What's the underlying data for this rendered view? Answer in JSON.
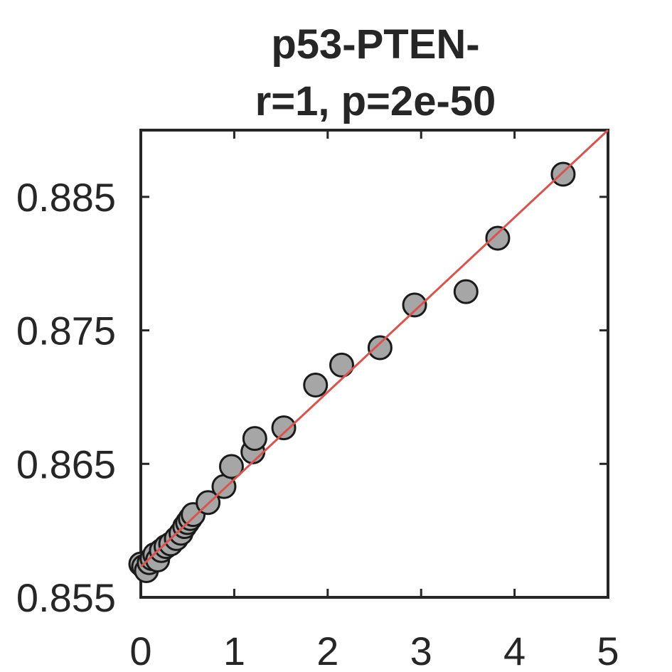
{
  "chart_data": {
    "type": "scatter",
    "title_lines": [
      "p53-PTEN-",
      "r=1, p=2e-50"
    ],
    "xlabel": "",
    "ylabel": "",
    "xlim": [
      0,
      5
    ],
    "ylim": [
      0.855,
      0.89
    ],
    "xticks": [
      0,
      1,
      2,
      3,
      4,
      5
    ],
    "xtick_labels": [
      "0",
      "1",
      "2",
      "3",
      "4",
      "5"
    ],
    "yticks": [
      0.855,
      0.865,
      0.875,
      0.885
    ],
    "ytick_labels": [
      "0.855",
      "0.865",
      "0.875",
      "0.885"
    ],
    "grid": false,
    "series": [
      {
        "marker": "circle",
        "marker_fill": "#a6a6a6",
        "marker_edge": "#1a1a1a",
        "points": [
          {
            "x": 0.0,
            "y": 0.8575
          },
          {
            "x": 0.03,
            "y": 0.8573
          },
          {
            "x": 0.06,
            "y": 0.857
          },
          {
            "x": 0.09,
            "y": 0.8576
          },
          {
            "x": 0.12,
            "y": 0.8579
          },
          {
            "x": 0.15,
            "y": 0.8582
          },
          {
            "x": 0.18,
            "y": 0.8578
          },
          {
            "x": 0.22,
            "y": 0.8585
          },
          {
            "x": 0.27,
            "y": 0.8588
          },
          {
            "x": 0.32,
            "y": 0.859
          },
          {
            "x": 0.38,
            "y": 0.8594
          },
          {
            "x": 0.43,
            "y": 0.8598
          },
          {
            "x": 0.47,
            "y": 0.8603
          },
          {
            "x": 0.5,
            "y": 0.8606
          },
          {
            "x": 0.53,
            "y": 0.8609
          },
          {
            "x": 0.56,
            "y": 0.8612
          },
          {
            "x": 0.72,
            "y": 0.8621
          },
          {
            "x": 0.89,
            "y": 0.8633
          },
          {
            "x": 0.97,
            "y": 0.8648
          },
          {
            "x": 1.2,
            "y": 0.8659
          },
          {
            "x": 1.22,
            "y": 0.8669
          },
          {
            "x": 1.53,
            "y": 0.8677
          },
          {
            "x": 1.87,
            "y": 0.8709
          },
          {
            "x": 2.15,
            "y": 0.8724
          },
          {
            "x": 2.56,
            "y": 0.8737
          },
          {
            "x": 2.93,
            "y": 0.8769
          },
          {
            "x": 3.48,
            "y": 0.8779
          },
          {
            "x": 3.82,
            "y": 0.8819
          },
          {
            "x": 4.52,
            "y": 0.8867
          }
        ]
      }
    ],
    "fit_line": {
      "color": "#d9534f",
      "from": {
        "x": 0.0,
        "y": 0.8573
      },
      "to": {
        "x": 5.0,
        "y": 0.89
      }
    }
  }
}
